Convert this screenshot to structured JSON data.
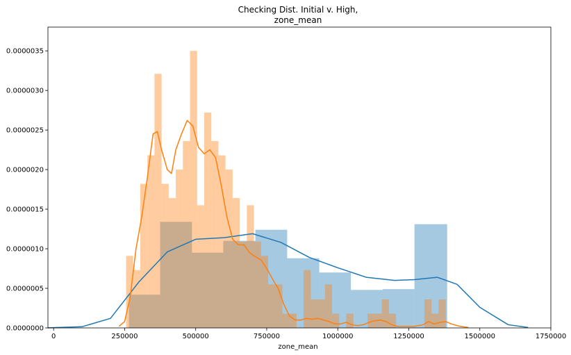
{
  "chart_data": {
    "type": "histogram",
    "title_lines": [
      "Checking Dist. Initial v. High,",
      "zone_mean"
    ],
    "xlabel": "zone_mean",
    "ylabel": "",
    "xlim": [
      -20000,
      1750000
    ],
    "ylim": [
      0,
      3.8e-06
    ],
    "x_ticks": [
      0,
      250000,
      500000,
      750000,
      1000000,
      1250000,
      1500000,
      1750000
    ],
    "y_ticks": [
      0,
      5e-07,
      1e-06,
      1.5e-06,
      2e-06,
      2.5e-06,
      3e-06,
      3.5e-06
    ],
    "x_tick_labels": [
      "0",
      "250000",
      "500000",
      "750000",
      "1000000",
      "1250000",
      "1500000",
      "1750000"
    ],
    "y_tick_labels": [
      "0.0000000",
      "0.0000005",
      "0.0000010",
      "0.0000015",
      "0.0000020",
      "0.0000025",
      "0.0000030",
      "0.0000035"
    ],
    "grid": false,
    "series": [
      {
        "color": "#1f77b4",
        "bars": [
          [
            265000,
            375000,
            4.2e-07
          ],
          [
            375000,
            487000,
            1.34e-06
          ],
          [
            487000,
            597000,
            9.5e-07
          ],
          [
            597000,
            710000,
            1.1e-06
          ],
          [
            710000,
            822000,
            1.24e-06
          ],
          [
            822000,
            935000,
            8.8e-07
          ],
          [
            935000,
            1046000,
            7e-07
          ],
          [
            1046000,
            1158000,
            4.8e-07
          ],
          [
            1158000,
            1270000,
            4.9e-07
          ],
          [
            1270000,
            1385000,
            1.31e-06
          ]
        ],
        "kde": [
          [
            -20000,
            1e-09
          ],
          [
            100000,
            1.5e-08
          ],
          [
            200000,
            1.2e-07
          ],
          [
            300000,
            5.8e-07
          ],
          [
            400000,
            9.6e-07
          ],
          [
            500000,
            1.12e-06
          ],
          [
            600000,
            1.14e-06
          ],
          [
            700000,
            1.19e-06
          ],
          [
            800000,
            1.08e-06
          ],
          [
            900000,
            8.9e-07
          ],
          [
            1000000,
            7.6e-07
          ],
          [
            1100000,
            6.4e-07
          ],
          [
            1200000,
            6e-07
          ],
          [
            1270000,
            6.1e-07
          ],
          [
            1350000,
            6.4e-07
          ],
          [
            1420000,
            5.5e-07
          ],
          [
            1500000,
            2.6e-07
          ],
          [
            1600000,
            4e-08
          ],
          [
            1670000,
            5e-09
          ]
        ]
      },
      {
        "color": "#ff7f0e",
        "bars": [
          [
            255000,
            280000,
            9.1e-07
          ],
          [
            280000,
            305000,
            7.3e-07
          ],
          [
            305000,
            330000,
            1.82e-06
          ],
          [
            330000,
            355000,
            2.18e-06
          ],
          [
            355000,
            380000,
            3.21e-06
          ],
          [
            380000,
            405000,
            1.82e-06
          ],
          [
            405000,
            430000,
            1.64e-06
          ],
          [
            430000,
            455000,
            2e-06
          ],
          [
            455000,
            480000,
            2.36e-06
          ],
          [
            480000,
            505000,
            3.5e-06
          ],
          [
            505000,
            530000,
            1.55e-06
          ],
          [
            530000,
            555000,
            2.72e-06
          ],
          [
            555000,
            580000,
            2.36e-06
          ],
          [
            580000,
            605000,
            2.18e-06
          ],
          [
            605000,
            630000,
            2e-06
          ],
          [
            630000,
            655000,
            1.64e-06
          ],
          [
            655000,
            680000,
            1.09e-06
          ],
          [
            680000,
            705000,
            1.55e-06
          ],
          [
            705000,
            730000,
            1.09e-06
          ],
          [
            730000,
            755000,
            9.1e-07
          ],
          [
            755000,
            780000,
            5.5e-07
          ],
          [
            780000,
            805000,
            5.5e-07
          ],
          [
            805000,
            830000,
            1.8e-07
          ],
          [
            830000,
            855000,
            1.8e-07
          ],
          [
            880000,
            905000,
            7.3e-07
          ],
          [
            905000,
            930000,
            3.6e-07
          ],
          [
            930000,
            955000,
            3.6e-07
          ],
          [
            955000,
            980000,
            5.5e-07
          ],
          [
            980000,
            1005000,
            1.8e-07
          ],
          [
            1030000,
            1055000,
            1.8e-07
          ],
          [
            1105000,
            1130000,
            1.8e-07
          ],
          [
            1130000,
            1155000,
            1.8e-07
          ],
          [
            1155000,
            1180000,
            3.6e-07
          ],
          [
            1180000,
            1205000,
            1.8e-07
          ],
          [
            1305000,
            1330000,
            3.6e-07
          ],
          [
            1330000,
            1355000,
            1.8e-07
          ],
          [
            1355000,
            1380000,
            3.6e-07
          ]
        ],
        "kde": [
          [
            230000,
            2e-08
          ],
          [
            250000,
            8e-08
          ],
          [
            270000,
            4e-07
          ],
          [
            290000,
            1e-06
          ],
          [
            310000,
            1.4e-06
          ],
          [
            330000,
            1.9e-06
          ],
          [
            350000,
            2.45e-06
          ],
          [
            365000,
            2.48e-06
          ],
          [
            380000,
            2.25e-06
          ],
          [
            400000,
            2e-06
          ],
          [
            415000,
            1.95e-06
          ],
          [
            430000,
            2.25e-06
          ],
          [
            450000,
            2.45e-06
          ],
          [
            470000,
            2.62e-06
          ],
          [
            490000,
            2.55e-06
          ],
          [
            510000,
            2.28e-06
          ],
          [
            530000,
            2.2e-06
          ],
          [
            550000,
            2.25e-06
          ],
          [
            570000,
            2.15e-06
          ],
          [
            590000,
            1.8e-06
          ],
          [
            610000,
            1.4e-06
          ],
          [
            630000,
            1.12e-06
          ],
          [
            650000,
            1.05e-06
          ],
          [
            670000,
            1.05e-06
          ],
          [
            690000,
            9.5e-07
          ],
          [
            710000,
            9e-07
          ],
          [
            730000,
            8.6e-07
          ],
          [
            750000,
            7.5e-07
          ],
          [
            770000,
            6.2e-07
          ],
          [
            790000,
            5e-07
          ],
          [
            810000,
            3e-07
          ],
          [
            830000,
            1.5e-07
          ],
          [
            850000,
            1e-07
          ],
          [
            870000,
            1e-07
          ],
          [
            890000,
            1.2e-07
          ],
          [
            910000,
            1.1e-07
          ],
          [
            930000,
            1.2e-07
          ],
          [
            950000,
            1e-07
          ],
          [
            970000,
            8e-08
          ],
          [
            990000,
            5e-08
          ],
          [
            1010000,
            5e-08
          ],
          [
            1030000,
            7e-08
          ],
          [
            1050000,
            4e-08
          ],
          [
            1070000,
            3e-08
          ],
          [
            1090000,
            4e-08
          ],
          [
            1110000,
            7e-08
          ],
          [
            1130000,
            9e-08
          ],
          [
            1150000,
            1e-07
          ],
          [
            1170000,
            8e-08
          ],
          [
            1190000,
            4e-08
          ],
          [
            1210000,
            2e-08
          ],
          [
            1240000,
            2e-08
          ],
          [
            1270000,
            2e-08
          ],
          [
            1300000,
            4e-08
          ],
          [
            1320000,
            8e-08
          ],
          [
            1340000,
            5e-08
          ],
          [
            1360000,
            7e-08
          ],
          [
            1380000,
            8e-08
          ],
          [
            1400000,
            5e-08
          ],
          [
            1430000,
            2e-08
          ],
          [
            1460000,
            5e-09
          ]
        ]
      }
    ]
  }
}
